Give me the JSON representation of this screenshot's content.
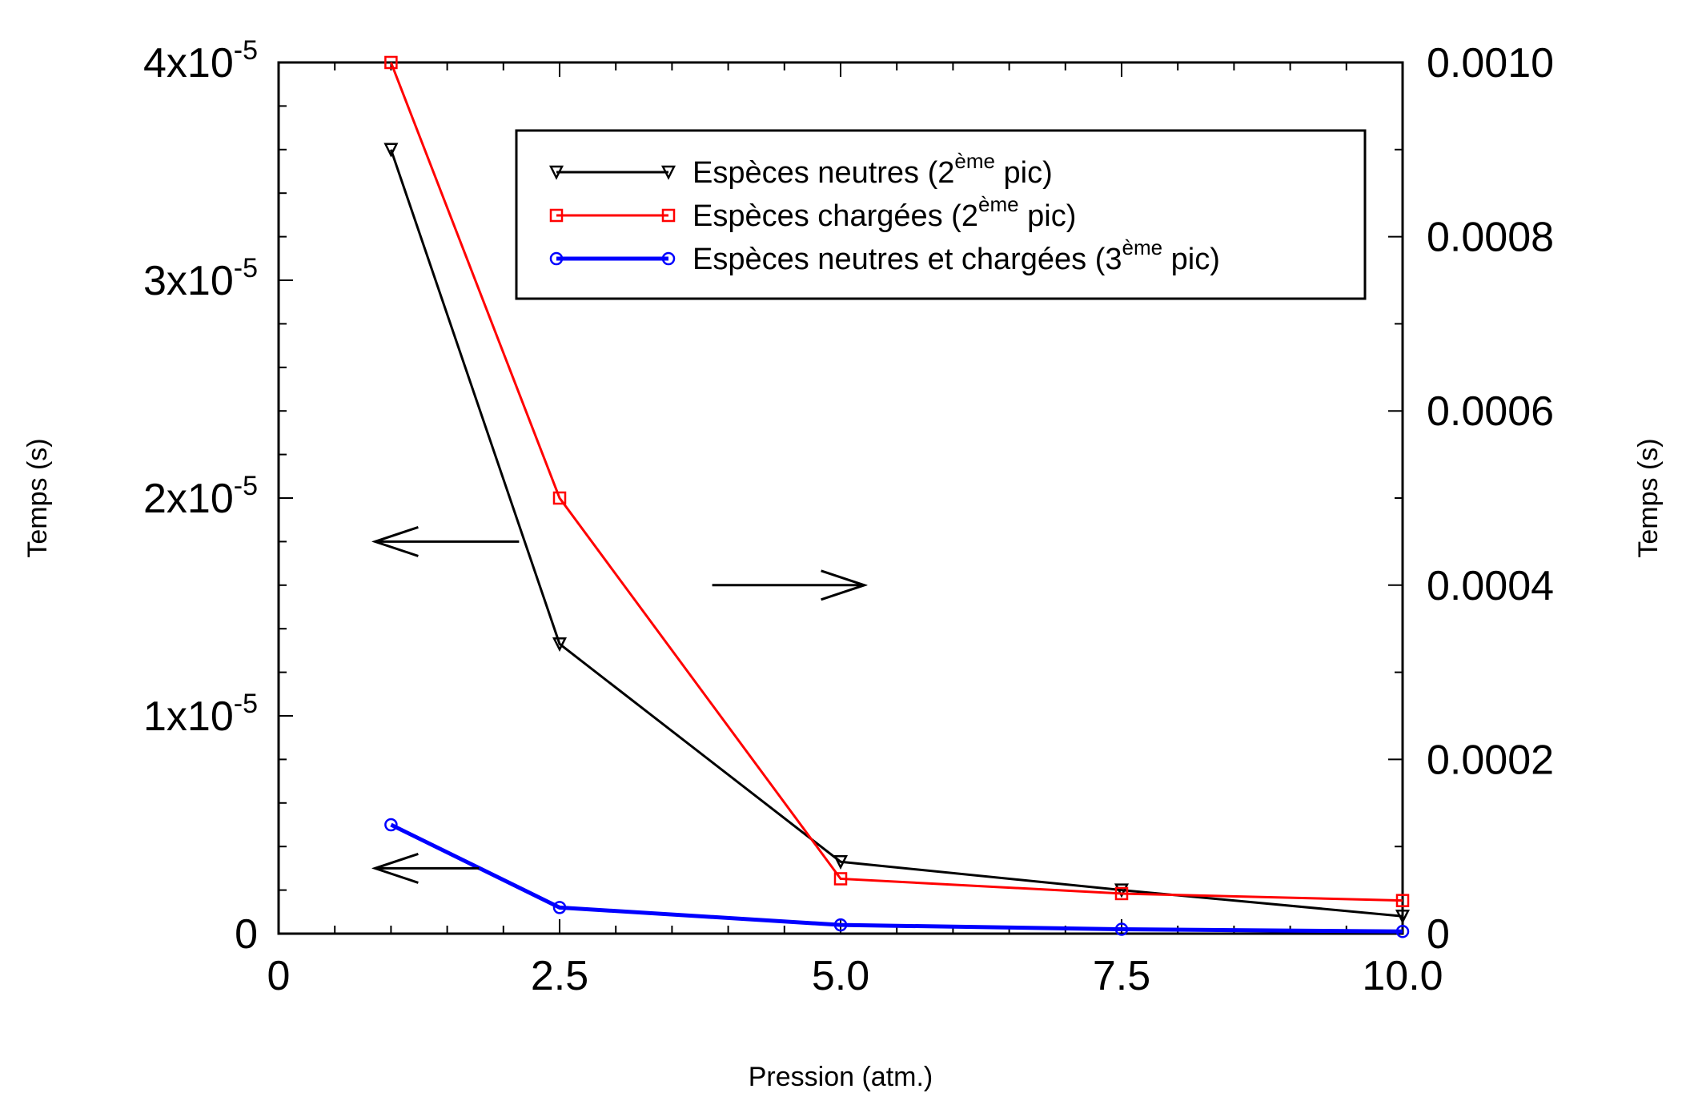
{
  "chart_data": {
    "type": "line",
    "xlabel": "Pression (atm.)",
    "ylabel_left": "Temps (s)",
    "ylabel_right": "Temps (s)",
    "xlim": [
      0,
      10
    ],
    "ylim_left": [
      0,
      4e-05
    ],
    "ylim_right": [
      0,
      0.001
    ],
    "x_ticks": [
      "0",
      "2.5",
      "5.0",
      "7.5",
      "10.0"
    ],
    "y_left_ticks": [
      {
        "base": "0",
        "exp": ""
      },
      {
        "base": "1x10",
        "exp": "-5"
      },
      {
        "base": "2x10",
        "exp": "-5"
      },
      {
        "base": "3x10",
        "exp": "-5"
      },
      {
        "base": "4x10",
        "exp": "-5"
      }
    ],
    "y_right_ticks": [
      "0",
      "0.0002",
      "0.0004",
      "0.0006",
      "0.0008",
      "0.0010"
    ],
    "series": [
      {
        "name": "Espèces neutres (2ème pic)",
        "legend": {
          "pre": "Espèces neutres (2",
          "sup": "ème",
          "post": "pic)"
        },
        "color": "#000000",
        "marker": "triangle-down",
        "axis": "left",
        "x": [
          1.0,
          2.5,
          5.0,
          7.5,
          10.0
        ],
        "y": [
          3.6e-05,
          1.33e-05,
          3.3e-06,
          2e-06,
          8e-07
        ]
      },
      {
        "name": "Espèces chargées (2ème pic)",
        "legend": {
          "pre": "Espèces chargées (2",
          "sup": "ème",
          "post": "pic)"
        },
        "color": "#ff0000",
        "marker": "square",
        "axis": "right",
        "x": [
          1.0,
          2.5,
          5.0,
          7.5,
          10.0
        ],
        "y": [
          0.001,
          0.0005,
          6.3e-05,
          4.6e-05,
          3.8e-05
        ]
      },
      {
        "name": "Espèces neutres et chargées (3ème pic)",
        "legend": {
          "pre": "Espèces neutres et chargées (3",
          "sup": "ème",
          "post": "pic)"
        },
        "color": "#0000ff",
        "marker": "circle",
        "axis": "left",
        "x": [
          1.0,
          2.5,
          5.0,
          7.5,
          10.0
        ],
        "y": [
          5e-06,
          1.2e-06,
          4e-07,
          2e-07,
          1e-07
        ]
      }
    ],
    "annotations": [
      {
        "type": "arrow",
        "direction": "left",
        "refers_to": "left-axis",
        "near": {
          "x": 1.0,
          "y": 1.8e-05
        }
      },
      {
        "type": "arrow",
        "direction": "right",
        "refers_to": "right-axis",
        "near": {
          "x": 4.0,
          "y": 1.6e-05
        }
      },
      {
        "type": "arrow",
        "direction": "left",
        "refers_to": "left-axis",
        "near": {
          "x": 1.0,
          "y": 3e-06
        }
      }
    ],
    "legend_position": "top-right",
    "grid": false
  }
}
